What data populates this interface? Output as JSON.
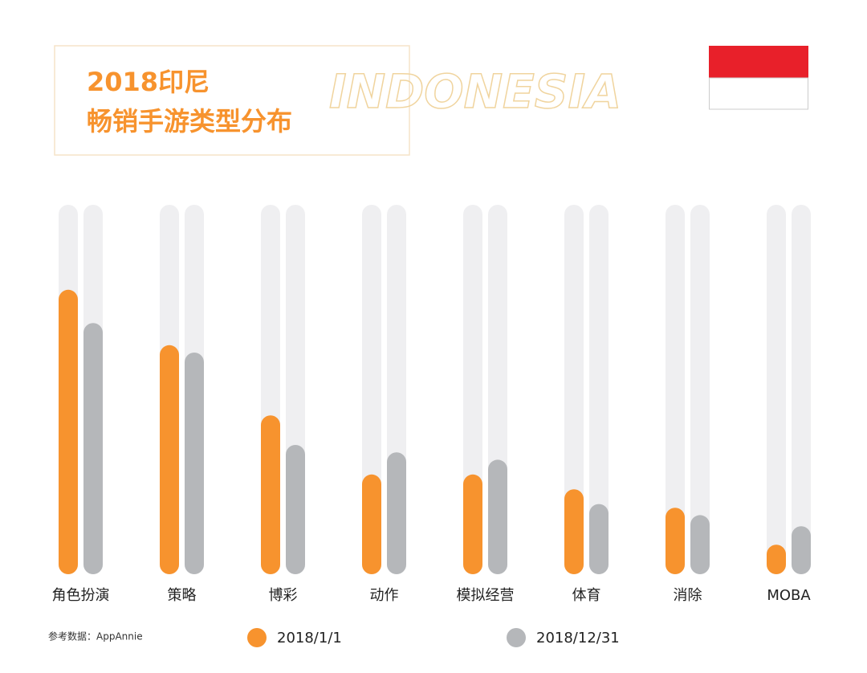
{
  "chart_data": {
    "type": "bar",
    "title": "2018印尼",
    "subtitle": "畅销手游类型分布",
    "annotation": "INDONESIA",
    "source": "参考数据：AppAnnie",
    "categories": [
      "角色扮演",
      "策略",
      "博彩",
      "动作",
      "模拟经营",
      "体育",
      "消除",
      "MOBA"
    ],
    "series": [
      {
        "name": "2018/1/1",
        "color": "#f7932e",
        "values": [
          77,
          62,
          43,
          27,
          27,
          23,
          18,
          8
        ]
      },
      {
        "name": "2018/12/31",
        "color": "#b5b7ba",
        "values": [
          68,
          60,
          35,
          33,
          31,
          19,
          16,
          13
        ]
      }
    ],
    "ylim": [
      0,
      100
    ],
    "track_color": "#efeff1"
  }
}
